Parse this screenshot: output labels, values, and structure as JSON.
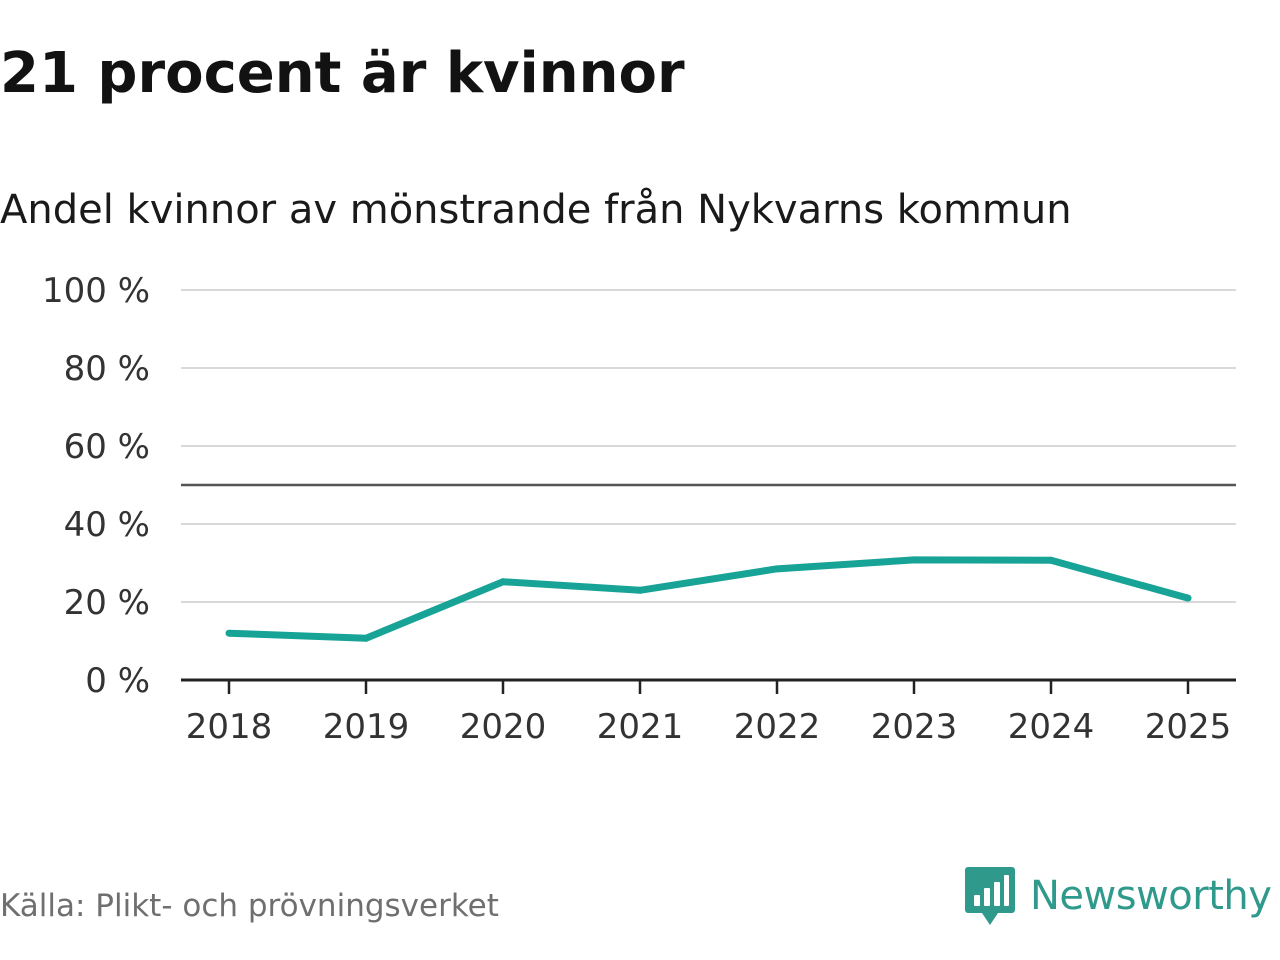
{
  "header": {
    "title": "21 procent är kvinnor",
    "subtitle": "Andel kvinnor av mönstrande från Nykvarns kommun"
  },
  "footer": {
    "source": "Källa: Plikt- och prövningsverket",
    "brand": "Newsworthy",
    "brand_logo_icon": "newsworthy-bar-chart-icon"
  },
  "colors": {
    "line": "#18a397",
    "grid": "#d9d9d9",
    "reference": "#555555",
    "axis": "#222222",
    "brand": "#2f9a8c"
  },
  "chart_data": {
    "type": "line",
    "title": "Andel kvinnor av mönstrande från Nykvarns kommun",
    "xlabel": "",
    "ylabel": "",
    "categories": [
      "2018",
      "2019",
      "2020",
      "2021",
      "2022",
      "2023",
      "2024",
      "2025"
    ],
    "series": [
      {
        "name": "Andel kvinnor",
        "values": [
          12,
          10.7,
          25.2,
          23,
          28.5,
          30.8,
          30.7,
          21
        ]
      }
    ],
    "ylim": [
      0,
      100
    ],
    "yticks": [
      0,
      20,
      40,
      60,
      80,
      100
    ],
    "ytick_labels": [
      "0 %",
      "20 %",
      "40 %",
      "60 %",
      "80 %",
      "100 %"
    ],
    "reference_line": 50,
    "grid": true,
    "legend": "none"
  }
}
